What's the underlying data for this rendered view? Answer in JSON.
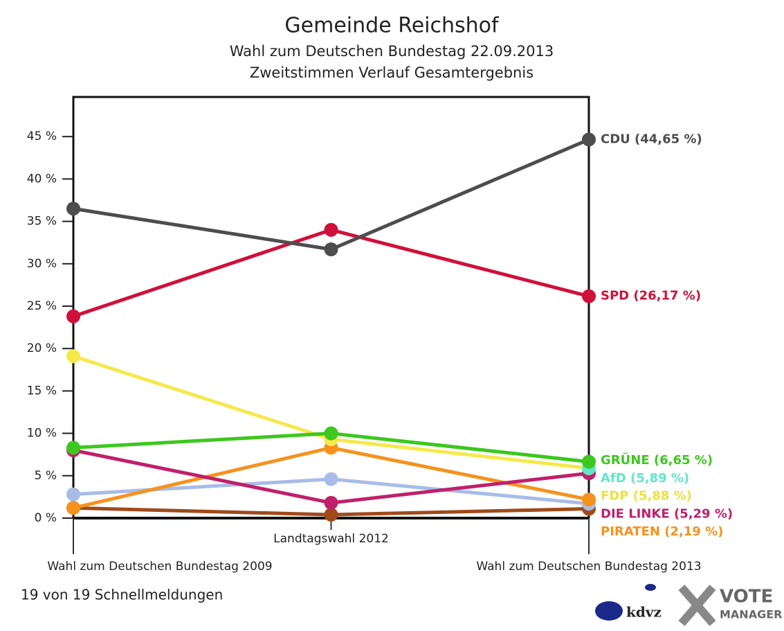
{
  "chart_data": {
    "type": "line",
    "title": "Gemeinde Reichshof",
    "subtitle": [
      "Wahl zum Deutschen Bundestag 22.09.2013",
      "Zweitstimmen Verlauf Gesamtergebnis"
    ],
    "categories": [
      "Wahl zum Deutschen Bundestag 2009",
      "Landtagswahl 2012",
      "Wahl zum Deutschen Bundestag 2013"
    ],
    "ylim": [
      0,
      50
    ],
    "yticks": [
      {
        "value": 0,
        "label": "0 %"
      },
      {
        "value": 5,
        "label": "5 %"
      },
      {
        "value": 10,
        "label": "10 %"
      },
      {
        "value": 15,
        "label": "15 %"
      },
      {
        "value": 20,
        "label": "20 %"
      },
      {
        "value": 25,
        "label": "25 %"
      },
      {
        "value": 30,
        "label": "30 %"
      },
      {
        "value": 35,
        "label": "35 %"
      },
      {
        "value": 40,
        "label": "40 %"
      },
      {
        "value": 45,
        "label": "45 %"
      }
    ],
    "series": [
      {
        "color": "#a04a1a",
        "values": [
          1.2,
          0.4,
          1.1
        ]
      },
      {
        "color": "#a8bce8",
        "values": [
          2.8,
          4.6,
          1.7
        ]
      },
      {
        "name": "PIRATEN",
        "color": "#f5921e",
        "values": [
          1.2,
          8.3,
          2.19
        ],
        "value_labels": [
          null,
          null,
          "PIRATEN (2,19 %)"
        ]
      },
      {
        "name": "DIE LINKE",
        "color": "#c0206a",
        "values": [
          8.0,
          1.8,
          5.29
        ],
        "value_labels": [
          null,
          null,
          "DIE LINKE (5,29 %)"
        ]
      },
      {
        "name": "FDP",
        "color": "#f5e94a",
        "values": [
          19.1,
          9.3,
          5.88
        ],
        "value_labels": [
          null,
          null,
          "FDP (5,88 %)"
        ]
      },
      {
        "name": "AfD",
        "color": "#5ee8c8",
        "values": [
          null,
          null,
          5.89
        ],
        "value_labels": [
          null,
          null,
          "AfD (5,89 %)"
        ]
      },
      {
        "name": "GRÜNE",
        "color": "#3cc81e",
        "values": [
          8.3,
          10.0,
          6.65
        ],
        "value_labels": [
          null,
          null,
          "GRÜNE (6,65 %)"
        ]
      },
      {
        "name": "SPD",
        "color": "#d0103a",
        "values": [
          23.8,
          34.0,
          26.17
        ],
        "value_labels": [
          null,
          null,
          "SPD (26,17 %)"
        ]
      },
      {
        "name": "CDU",
        "color": "#4d4d4d",
        "values": [
          36.5,
          31.7,
          44.65
        ],
        "value_labels": [
          null,
          null,
          "CDU (44,65 %)"
        ]
      }
    ],
    "footer": "19 von 19 Schnellmeldungen",
    "logos": [
      "kdvz",
      "VOTE",
      "MANAGER"
    ]
  }
}
